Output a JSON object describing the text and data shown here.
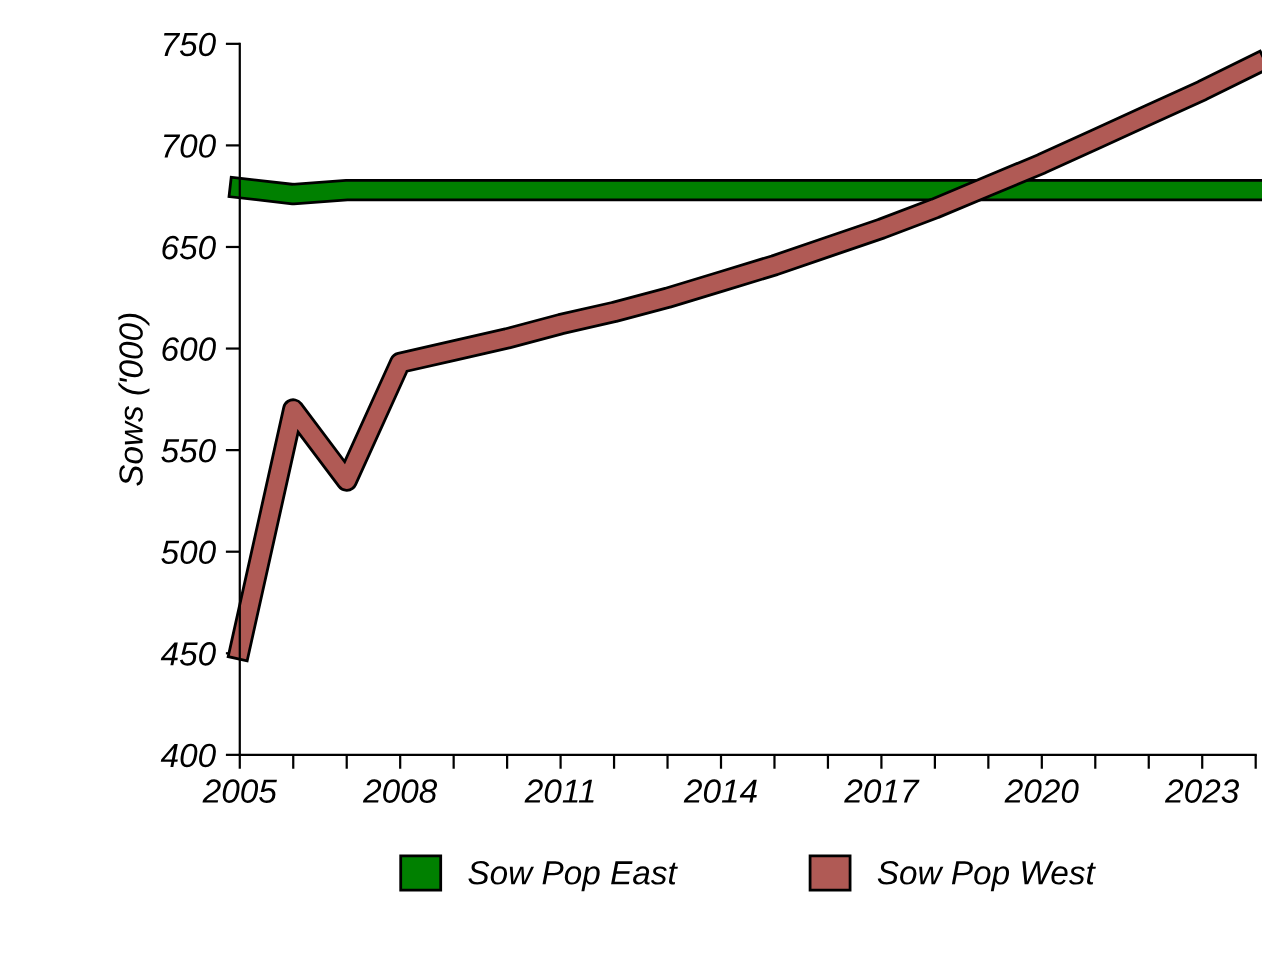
{
  "chart_data": {
    "type": "line",
    "ylabel": "Sows ('000)",
    "x": [
      2005,
      2006,
      2007,
      2008,
      2009,
      2010,
      2011,
      2012,
      2013,
      2014,
      2015,
      2016,
      2017,
      2018,
      2019,
      2020,
      2021,
      2022,
      2023,
      2024
    ],
    "series": [
      {
        "name": "Sow Pop East",
        "color": "#008000",
        "values": [
          679,
          676,
          678,
          678,
          678,
          678,
          678,
          678,
          678,
          678,
          678,
          678,
          678,
          678,
          678,
          678,
          678,
          678,
          678,
          678
        ]
      },
      {
        "name": "Sow Pop West",
        "color": "#b05a55",
        "values": [
          452,
          570,
          535,
          593,
          599,
          605,
          612,
          618,
          625,
          633,
          641,
          650,
          659,
          669,
          680,
          691,
          703,
          715,
          727,
          740
        ]
      }
    ],
    "xlim": [
      2005,
      2024
    ],
    "xticks": [
      2005,
      {
        "value": 2006,
        "label": null
      },
      {
        "value": 2007,
        "label": null
      },
      2008,
      {
        "value": 2009,
        "label": null
      },
      {
        "value": 2010,
        "label": null
      },
      2011,
      {
        "value": 2012,
        "label": null
      },
      {
        "value": 2013,
        "label": null
      },
      2014,
      {
        "value": 2015,
        "label": null
      },
      {
        "value": 2016,
        "label": null
      },
      2017,
      {
        "value": 2018,
        "label": null
      },
      {
        "value": 2019,
        "label": null
      },
      2020,
      {
        "value": 2021,
        "label": null
      },
      {
        "value": 2022,
        "label": null
      },
      2023,
      {
        "value": 2024,
        "label": null
      }
    ],
    "ylim": [
      400,
      750
    ],
    "yticks": [
      400,
      450,
      500,
      550,
      600,
      650,
      700,
      750
    ],
    "grid": false,
    "legend": "bottom",
    "marker": "none",
    "line_style": "solid"
  }
}
